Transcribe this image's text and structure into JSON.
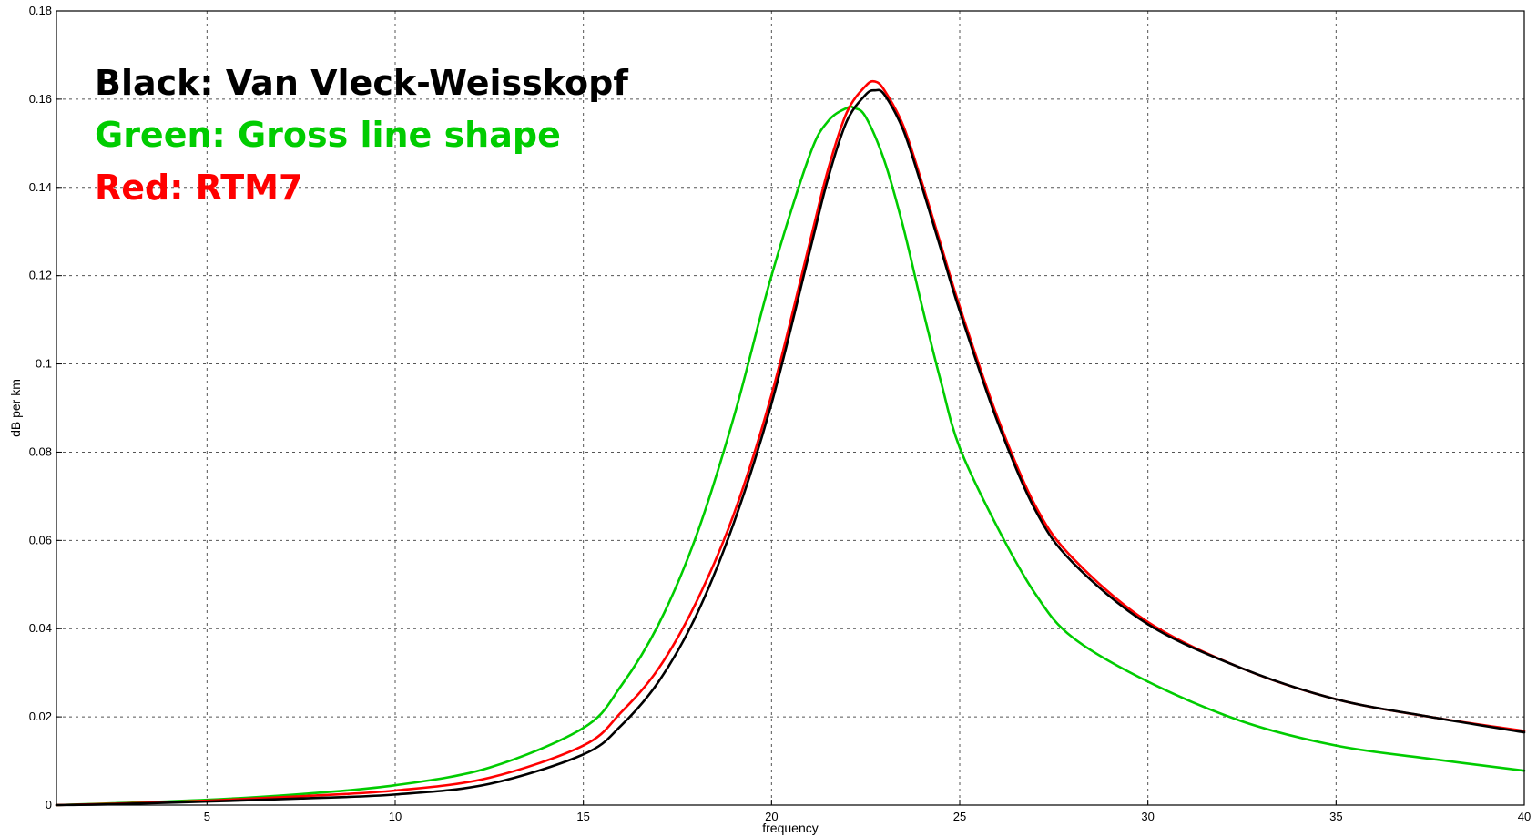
{
  "chart_data": {
    "type": "line",
    "title": "",
    "xlabel": "frequency",
    "ylabel": "dB per km",
    "xlim": [
      1,
      40
    ],
    "ylim": [
      0,
      0.18
    ],
    "x_ticks": [
      "5",
      "10",
      "15",
      "20",
      "25",
      "30",
      "35",
      "40"
    ],
    "y_ticks": [
      "0",
      "0.02",
      "0.04",
      "0.06",
      "0.08",
      "0.1",
      "0.12",
      "0.14",
      "0.16",
      "0.18"
    ],
    "grid": true,
    "annotations": [
      {
        "text": "Black: Van Vleck-Weisskopf",
        "color": "#000000"
      },
      {
        "text": "Green: Gross line shape",
        "color": "#00cc00"
      },
      {
        "text": "Red: RTM7",
        "color": "#ff0000"
      }
    ],
    "series": [
      {
        "color": "#000000",
        "x": [
          1,
          2.5,
          5,
          7.5,
          10,
          12.5,
          15,
          16,
          17,
          18,
          19,
          20,
          21,
          21.5,
          22,
          22.5,
          22.75,
          23,
          23.5,
          24,
          24.5,
          25,
          26,
          27,
          28,
          30,
          32.5,
          35,
          37.5,
          40
        ],
        "y": [
          0.0,
          0.0002,
          0.0008,
          0.0015,
          0.0024,
          0.0048,
          0.0115,
          0.018,
          0.028,
          0.043,
          0.064,
          0.091,
          0.125,
          0.142,
          0.155,
          0.161,
          0.162,
          0.161,
          0.153,
          0.14,
          0.126,
          0.112,
          0.087,
          0.067,
          0.055,
          0.041,
          0.031,
          0.024,
          0.02,
          0.0165
        ]
      },
      {
        "color": "#00cc00",
        "x": [
          1,
          2.5,
          5,
          7.5,
          10,
          12.5,
          15,
          16,
          17,
          18,
          19,
          20,
          21,
          21.5,
          22,
          22.2,
          22.5,
          23,
          23.5,
          24,
          24.5,
          25,
          26,
          27,
          28,
          30,
          32.5,
          35,
          37.5,
          40
        ],
        "y": [
          0.0,
          0.0004,
          0.0012,
          0.0025,
          0.0045,
          0.0085,
          0.0175,
          0.027,
          0.041,
          0.061,
          0.088,
          0.12,
          0.147,
          0.155,
          0.158,
          0.158,
          0.156,
          0.146,
          0.131,
          0.113,
          0.096,
          0.081,
          0.063,
          0.048,
          0.038,
          0.028,
          0.019,
          0.0135,
          0.0105,
          0.0078
        ]
      },
      {
        "color": "#ff0000",
        "x": [
          1,
          2.5,
          5,
          7.5,
          10,
          12.5,
          15,
          16,
          17,
          18,
          19,
          20,
          21,
          21.5,
          22,
          22.5,
          22.75,
          23,
          23.5,
          24,
          24.5,
          25,
          26,
          27,
          28,
          30,
          32.5,
          35,
          37.5,
          40
        ],
        "y": [
          0.0,
          0.0003,
          0.001,
          0.002,
          0.0033,
          0.0062,
          0.0135,
          0.021,
          0.031,
          0.046,
          0.066,
          0.093,
          0.127,
          0.144,
          0.157,
          0.163,
          0.164,
          0.162,
          0.154,
          0.141,
          0.127,
          0.113,
          0.088,
          0.068,
          0.056,
          0.0415,
          0.031,
          0.024,
          0.02,
          0.0168
        ]
      }
    ]
  }
}
